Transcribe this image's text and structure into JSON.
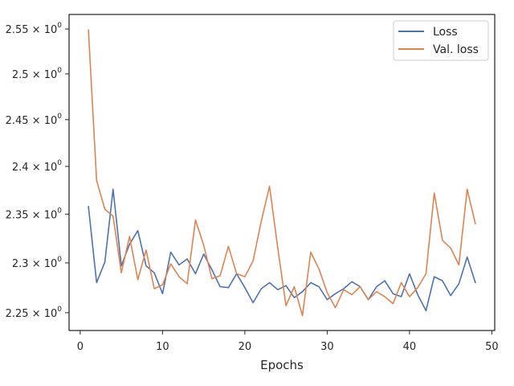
{
  "chart_data": {
    "type": "line",
    "title": "",
    "xlabel": "Epochs",
    "ylabel": "",
    "yscale": "log",
    "xlim": [
      -1.35,
      50.35
    ],
    "ylim": [
      2.2324,
      2.5664
    ],
    "x_ticks": [
      0,
      10,
      20,
      30,
      40,
      50
    ],
    "x_tick_labels": [
      "0",
      "10",
      "20",
      "30",
      "40",
      "50"
    ],
    "y_ticks": [
      2.25,
      2.3,
      2.35,
      2.4,
      2.45,
      2.5,
      2.55
    ],
    "y_tick_labels": [
      {
        "mantissa": "2.25",
        "base": "10",
        "exp": "0"
      },
      {
        "mantissa": "2.3",
        "base": "10",
        "exp": "0"
      },
      {
        "mantissa": "2.35",
        "base": "10",
        "exp": "0"
      },
      {
        "mantissa": "2.4",
        "base": "10",
        "exp": "0"
      },
      {
        "mantissa": "2.45",
        "base": "10",
        "exp": "0"
      },
      {
        "mantissa": "2.5",
        "base": "10",
        "exp": "0"
      },
      {
        "mantissa": "2.55",
        "base": "10",
        "exp": "0"
      }
    ],
    "grid": false,
    "legend_position": "top-right",
    "x": [
      1,
      2,
      3,
      4,
      5,
      6,
      7,
      8,
      9,
      10,
      11,
      12,
      13,
      14,
      15,
      16,
      17,
      18,
      19,
      20,
      21,
      22,
      23,
      24,
      25,
      26,
      27,
      28,
      29,
      30,
      31,
      32,
      33,
      34,
      35,
      36,
      37,
      38,
      39,
      40,
      41,
      42,
      43,
      44,
      45,
      46,
      47,
      48
    ],
    "series": [
      {
        "name": "Loss",
        "color": "#4c72b0",
        "values": [
          2.358,
          2.28,
          2.301,
          2.376,
          2.297,
          2.319,
          2.333,
          2.297,
          2.29,
          2.269,
          2.311,
          2.298,
          2.304,
          2.289,
          2.309,
          2.293,
          2.276,
          2.275,
          2.289,
          2.275,
          2.26,
          2.274,
          2.28,
          2.273,
          2.277,
          2.265,
          2.271,
          2.28,
          2.276,
          2.263,
          2.269,
          2.274,
          2.281,
          2.276,
          2.263,
          2.276,
          2.282,
          2.269,
          2.266,
          2.289,
          2.268,
          2.252,
          2.286,
          2.282,
          2.267,
          2.279,
          2.306,
          2.28
        ]
      },
      {
        "name": "Val. loss",
        "color": "#dd8452",
        "values": [
          2.549,
          2.385,
          2.355,
          2.348,
          2.29,
          2.327,
          2.283,
          2.313,
          2.274,
          2.278,
          2.299,
          2.286,
          2.279,
          2.344,
          2.318,
          2.284,
          2.287,
          2.317,
          2.289,
          2.286,
          2.302,
          2.343,
          2.379,
          2.315,
          2.257,
          2.276,
          2.247,
          2.311,
          2.294,
          2.27,
          2.255,
          2.273,
          2.268,
          2.276,
          2.263,
          2.271,
          2.266,
          2.259,
          2.28,
          2.266,
          2.275,
          2.289,
          2.372,
          2.323,
          2.315,
          2.298,
          2.376,
          2.34
        ]
      }
    ]
  }
}
